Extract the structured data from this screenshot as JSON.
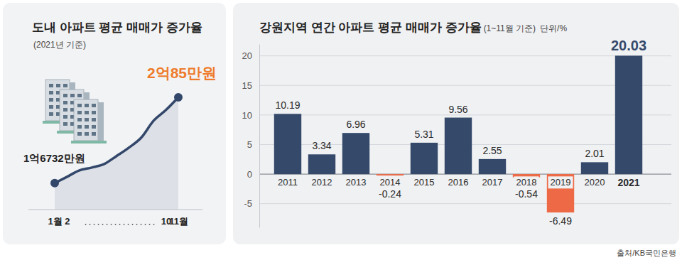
{
  "source": "출처/KB국민은행",
  "chart_data": [
    {
      "type": "line",
      "title": "도내 아파트 평균 매매가 증가율",
      "subtitle": "(2021년 기준)",
      "categories": [
        "1월",
        "2",
        null,
        null,
        null,
        null,
        null,
        null,
        null,
        "10",
        "11월"
      ],
      "values": [
        16732,
        16980,
        17230,
        17340,
        17480,
        17790,
        18120,
        18510,
        19170,
        19590,
        20085
      ],
      "value_labels": [
        "1억6732만원",
        null,
        null,
        null,
        null,
        null,
        null,
        null,
        null,
        null,
        "2억85만원"
      ],
      "ylim": [
        15700,
        21250
      ],
      "color": "#33476a",
      "marker": "circle",
      "data_labels": true,
      "tick_labels": "x"
    },
    {
      "type": "bar",
      "title": "강원지역 연간 아파트 평균 매매가 증가율",
      "subtitle": "(1~11월 기준)",
      "ylabel": "단위/%",
      "categories": [
        "2011",
        "2012",
        "2013",
        "2014",
        "2015",
        "2016",
        "2017",
        "2018",
        "2019",
        "2020",
        "2021"
      ],
      "values": [
        10.19,
        3.34,
        6.96,
        -0.24,
        5.31,
        9.56,
        2.55,
        -0.54,
        -6.49,
        2.01,
        20.03
      ],
      "colors": [
        "#35496b",
        "#35496b",
        "#35496b",
        "#ee6a46",
        "#35496b",
        "#35496b",
        "#35496b",
        "#ee6a46",
        "#ee6a46",
        "#35496b",
        "#35496b"
      ],
      "ylim": [
        -9,
        22
      ],
      "yticks": [
        -5,
        0,
        5,
        10,
        15,
        20
      ],
      "grid": true,
      "data_labels": true
    }
  ]
}
